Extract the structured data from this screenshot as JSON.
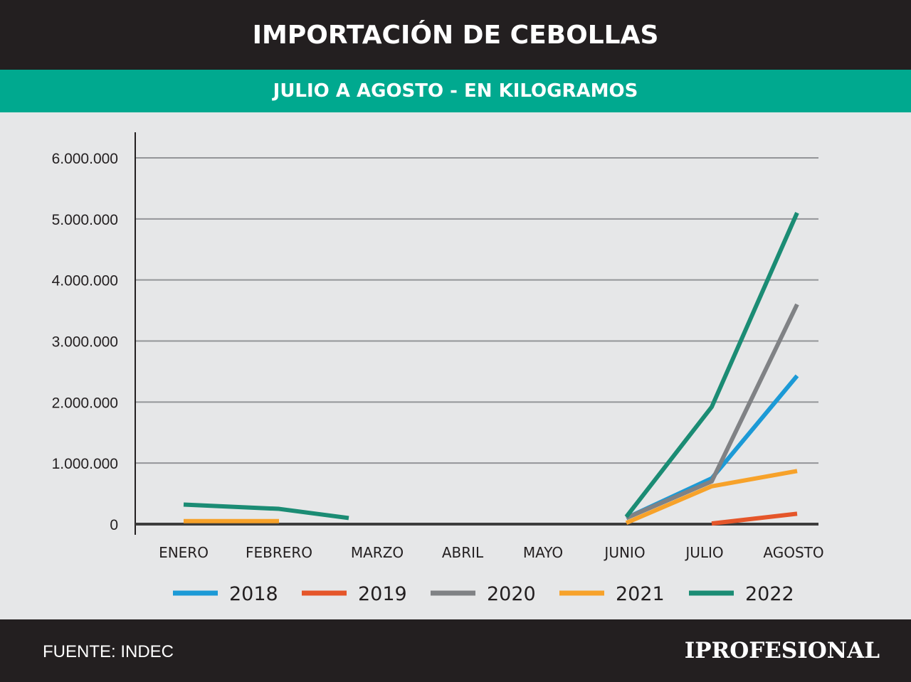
{
  "header": {
    "title": "IMPORTACIÓN DE CEBOLLAS",
    "subtitle": "JULIO A AGOSTO - EN KILOGRAMOS"
  },
  "footer": {
    "source": "FUENTE: INDEC",
    "brand": "IPROFESIONAL"
  },
  "chart_data": {
    "type": "line",
    "title": "IMPORTACIÓN DE CEBOLLAS",
    "subtitle": "JULIO A AGOSTO - EN KILOGRAMOS",
    "xlabel": "",
    "ylabel": "",
    "categories": [
      "ENERO",
      "FEBRERO",
      "MARZO",
      "ABRIL",
      "MAYO",
      "JUNIO",
      "JULIO",
      "AGOSTO"
    ],
    "ylim": [
      0,
      6000000
    ],
    "yticks": [
      0,
      1000000,
      2000000,
      3000000,
      4000000,
      5000000,
      6000000
    ],
    "ytick_labels": [
      "0",
      "1.000.000",
      "2.000.000",
      "3.000.000",
      "4.000.000",
      "5.000.000",
      "6.000.000"
    ],
    "grid": true,
    "legend_position": "bottom",
    "series": [
      {
        "name": "2018",
        "color": "#1c9ad6",
        "values": [
          null,
          null,
          null,
          null,
          null,
          100000,
          750000,
          2430000
        ]
      },
      {
        "name": "2019",
        "color": "#e5562a",
        "values": [
          null,
          null,
          null,
          null,
          null,
          null,
          10000,
          170000
        ]
      },
      {
        "name": "2020",
        "color": "#808285",
        "values": [
          null,
          null,
          null,
          null,
          null,
          100000,
          700000,
          3600000
        ]
      },
      {
        "name": "2021",
        "color": "#f7a22a",
        "values": [
          50000,
          50000,
          null,
          null,
          null,
          20000,
          620000,
          870000
        ]
      },
      {
        "name": "2022",
        "color": "#1b8c74",
        "values": [
          320000,
          250000,
          100000,
          null,
          null,
          120000,
          1920000,
          5100000
        ]
      }
    ]
  }
}
